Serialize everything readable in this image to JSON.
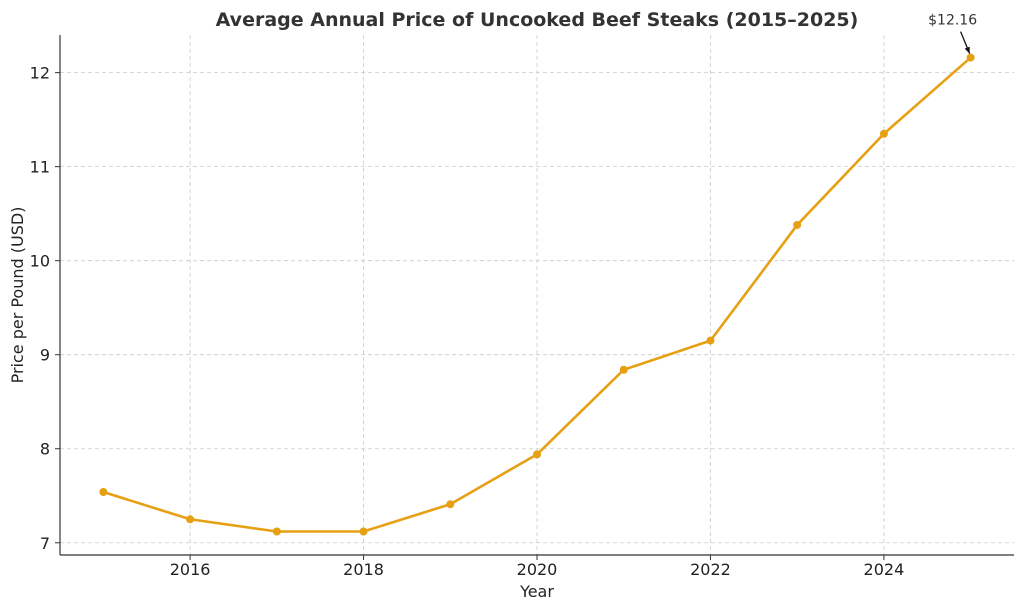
{
  "chart_data": {
    "type": "line",
    "title": "Average Annual Price of Uncooked Beef Steaks (2015–2025)",
    "xlabel": "Year",
    "ylabel": "Price per Pound (USD)",
    "x": [
      2015,
      2016,
      2017,
      2018,
      2019,
      2020,
      2021,
      2022,
      2023,
      2024,
      2025
    ],
    "series": [
      {
        "values": [
          7.54,
          7.25,
          7.12,
          7.12,
          7.41,
          7.94,
          8.84,
          9.15,
          10.38,
          11.35,
          12.16
        ],
        "color": "#E6A012"
      }
    ],
    "xlim": [
      2014.5,
      2025.5
    ],
    "ylim": [
      6.87,
      12.4
    ],
    "xticks": [
      2016,
      2018,
      2020,
      2022,
      2024
    ],
    "yticks": [
      7,
      8,
      9,
      10,
      11,
      12
    ],
    "grid": true,
    "annotation": {
      "text": "$12.16",
      "x": 2025,
      "y": 12.16
    }
  }
}
